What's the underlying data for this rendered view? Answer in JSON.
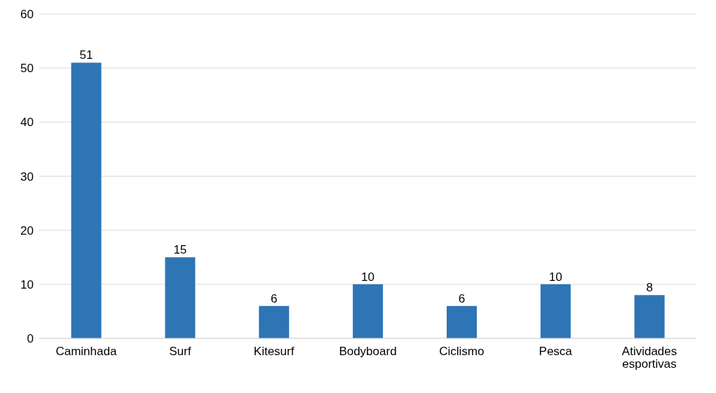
{
  "chart_data": {
    "type": "bar",
    "categories": [
      "Caminhada",
      "Surf",
      "Kitesurf",
      "Bodyboard",
      "Ciclismo",
      "Pesca",
      "Atividades esportivas"
    ],
    "values": [
      51,
      15,
      6,
      10,
      6,
      10,
      8
    ],
    "color": "#2e75b6",
    "ylim": [
      0,
      60
    ],
    "yticks": [
      0,
      10,
      20,
      30,
      40,
      50,
      60
    ],
    "grid": "y",
    "data_labels": true
  }
}
